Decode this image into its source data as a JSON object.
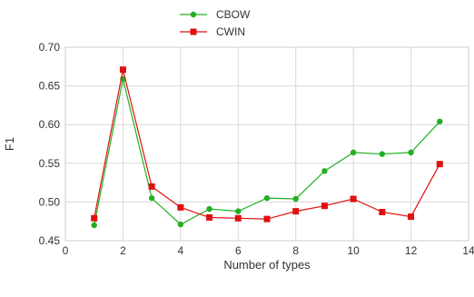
{
  "chart_data": {
    "type": "line",
    "xlabel": "Number of types",
    "ylabel": "F1",
    "xlim": [
      0,
      14
    ],
    "ylim": [
      0.45,
      0.7
    ],
    "xticks": [
      0,
      2,
      4,
      6,
      8,
      10,
      12,
      14
    ],
    "yticks": [
      0.45,
      0.5,
      0.55,
      0.6,
      0.65,
      0.7
    ],
    "xtick_labels": [
      "0",
      "2",
      "4",
      "6",
      "8",
      "10",
      "12",
      "14"
    ],
    "ytick_labels": [
      "0.45",
      "0.50",
      "0.55",
      "0.60",
      "0.65",
      "0.70"
    ],
    "grid": true,
    "legend_position": "top-center",
    "x": [
      1,
      2,
      3,
      4,
      5,
      6,
      7,
      8,
      9,
      10,
      11,
      12,
      13
    ],
    "series": [
      {
        "name": "CBOW",
        "color": "#22b022",
        "marker": "circle",
        "values": [
          0.47,
          0.659,
          0.505,
          0.471,
          0.491,
          0.488,
          0.505,
          0.504,
          0.54,
          0.564,
          0.562,
          0.564,
          0.604
        ]
      },
      {
        "name": "CWIN",
        "color": "#e01010",
        "marker": "square",
        "values": [
          0.479,
          0.671,
          0.52,
          0.493,
          0.48,
          0.479,
          0.478,
          0.488,
          0.495,
          0.504,
          0.487,
          0.481,
          0.549
        ]
      }
    ]
  }
}
